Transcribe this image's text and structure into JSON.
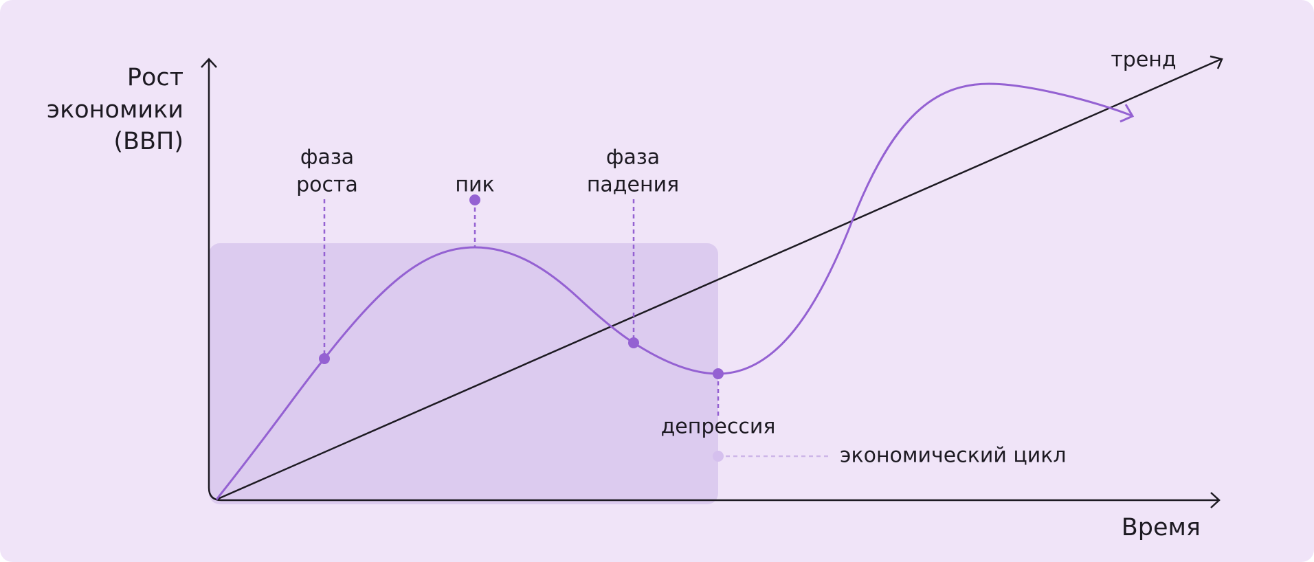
{
  "y_axis_label": [
    "Рост",
    "экономики",
    "(ВВП)"
  ],
  "x_axis_label": "Время",
  "trend_label": "тренд",
  "annotations": {
    "growth_phase": [
      "фаза",
      "роста"
    ],
    "peak": "пик",
    "decline_phase": [
      "фаза",
      "падения"
    ],
    "depression": "депрессия"
  },
  "legend": "экономический цикл"
}
